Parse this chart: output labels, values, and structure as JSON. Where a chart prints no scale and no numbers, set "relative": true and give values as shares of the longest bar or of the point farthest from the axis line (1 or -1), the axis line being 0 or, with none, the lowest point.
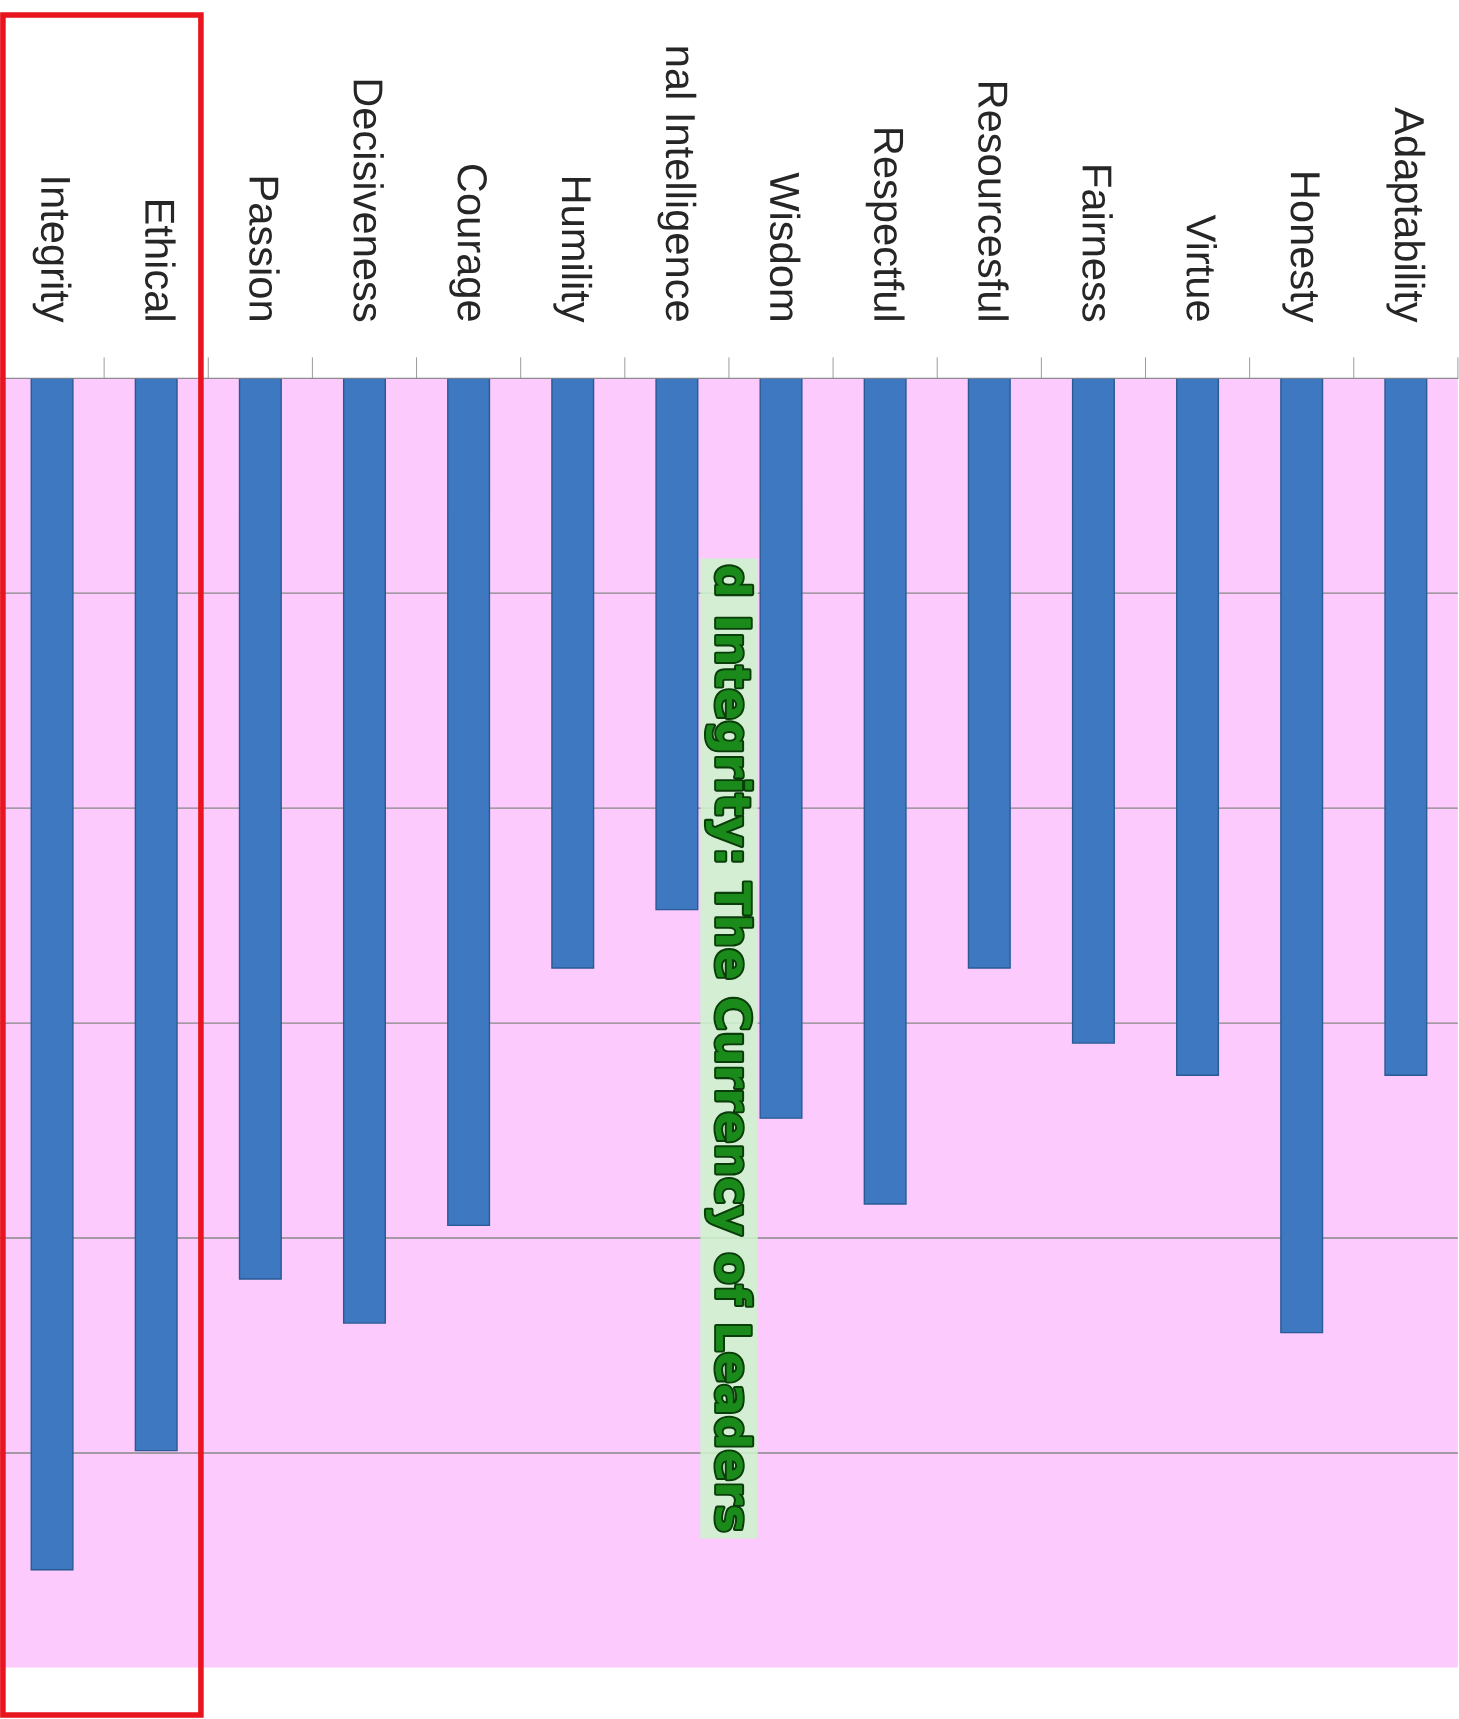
{
  "chart_data": {
    "type": "bar",
    "title": "d Integrity: The Currency of Leaders",
    "categories": [
      "Integrity",
      "Ethical",
      "Passion",
      "Decisiveness",
      "Courage",
      "Humility",
      "nal Intelligence",
      "Wisdom",
      "Respectful",
      "Resourcesful",
      "Fairness",
      "Virtue",
      "Honesty",
      "Adaptability"
    ],
    "values": [
      -1,
      -0.9,
      -0.756,
      -0.793,
      -0.711,
      -0.495,
      -0.446,
      -0.621,
      -0.693,
      -0.495,
      -0.558,
      -0.585,
      -0.801,
      -0.585
    ],
    "color": "#3d78c0",
    "relative": true,
    "grid": "y"
  }
}
